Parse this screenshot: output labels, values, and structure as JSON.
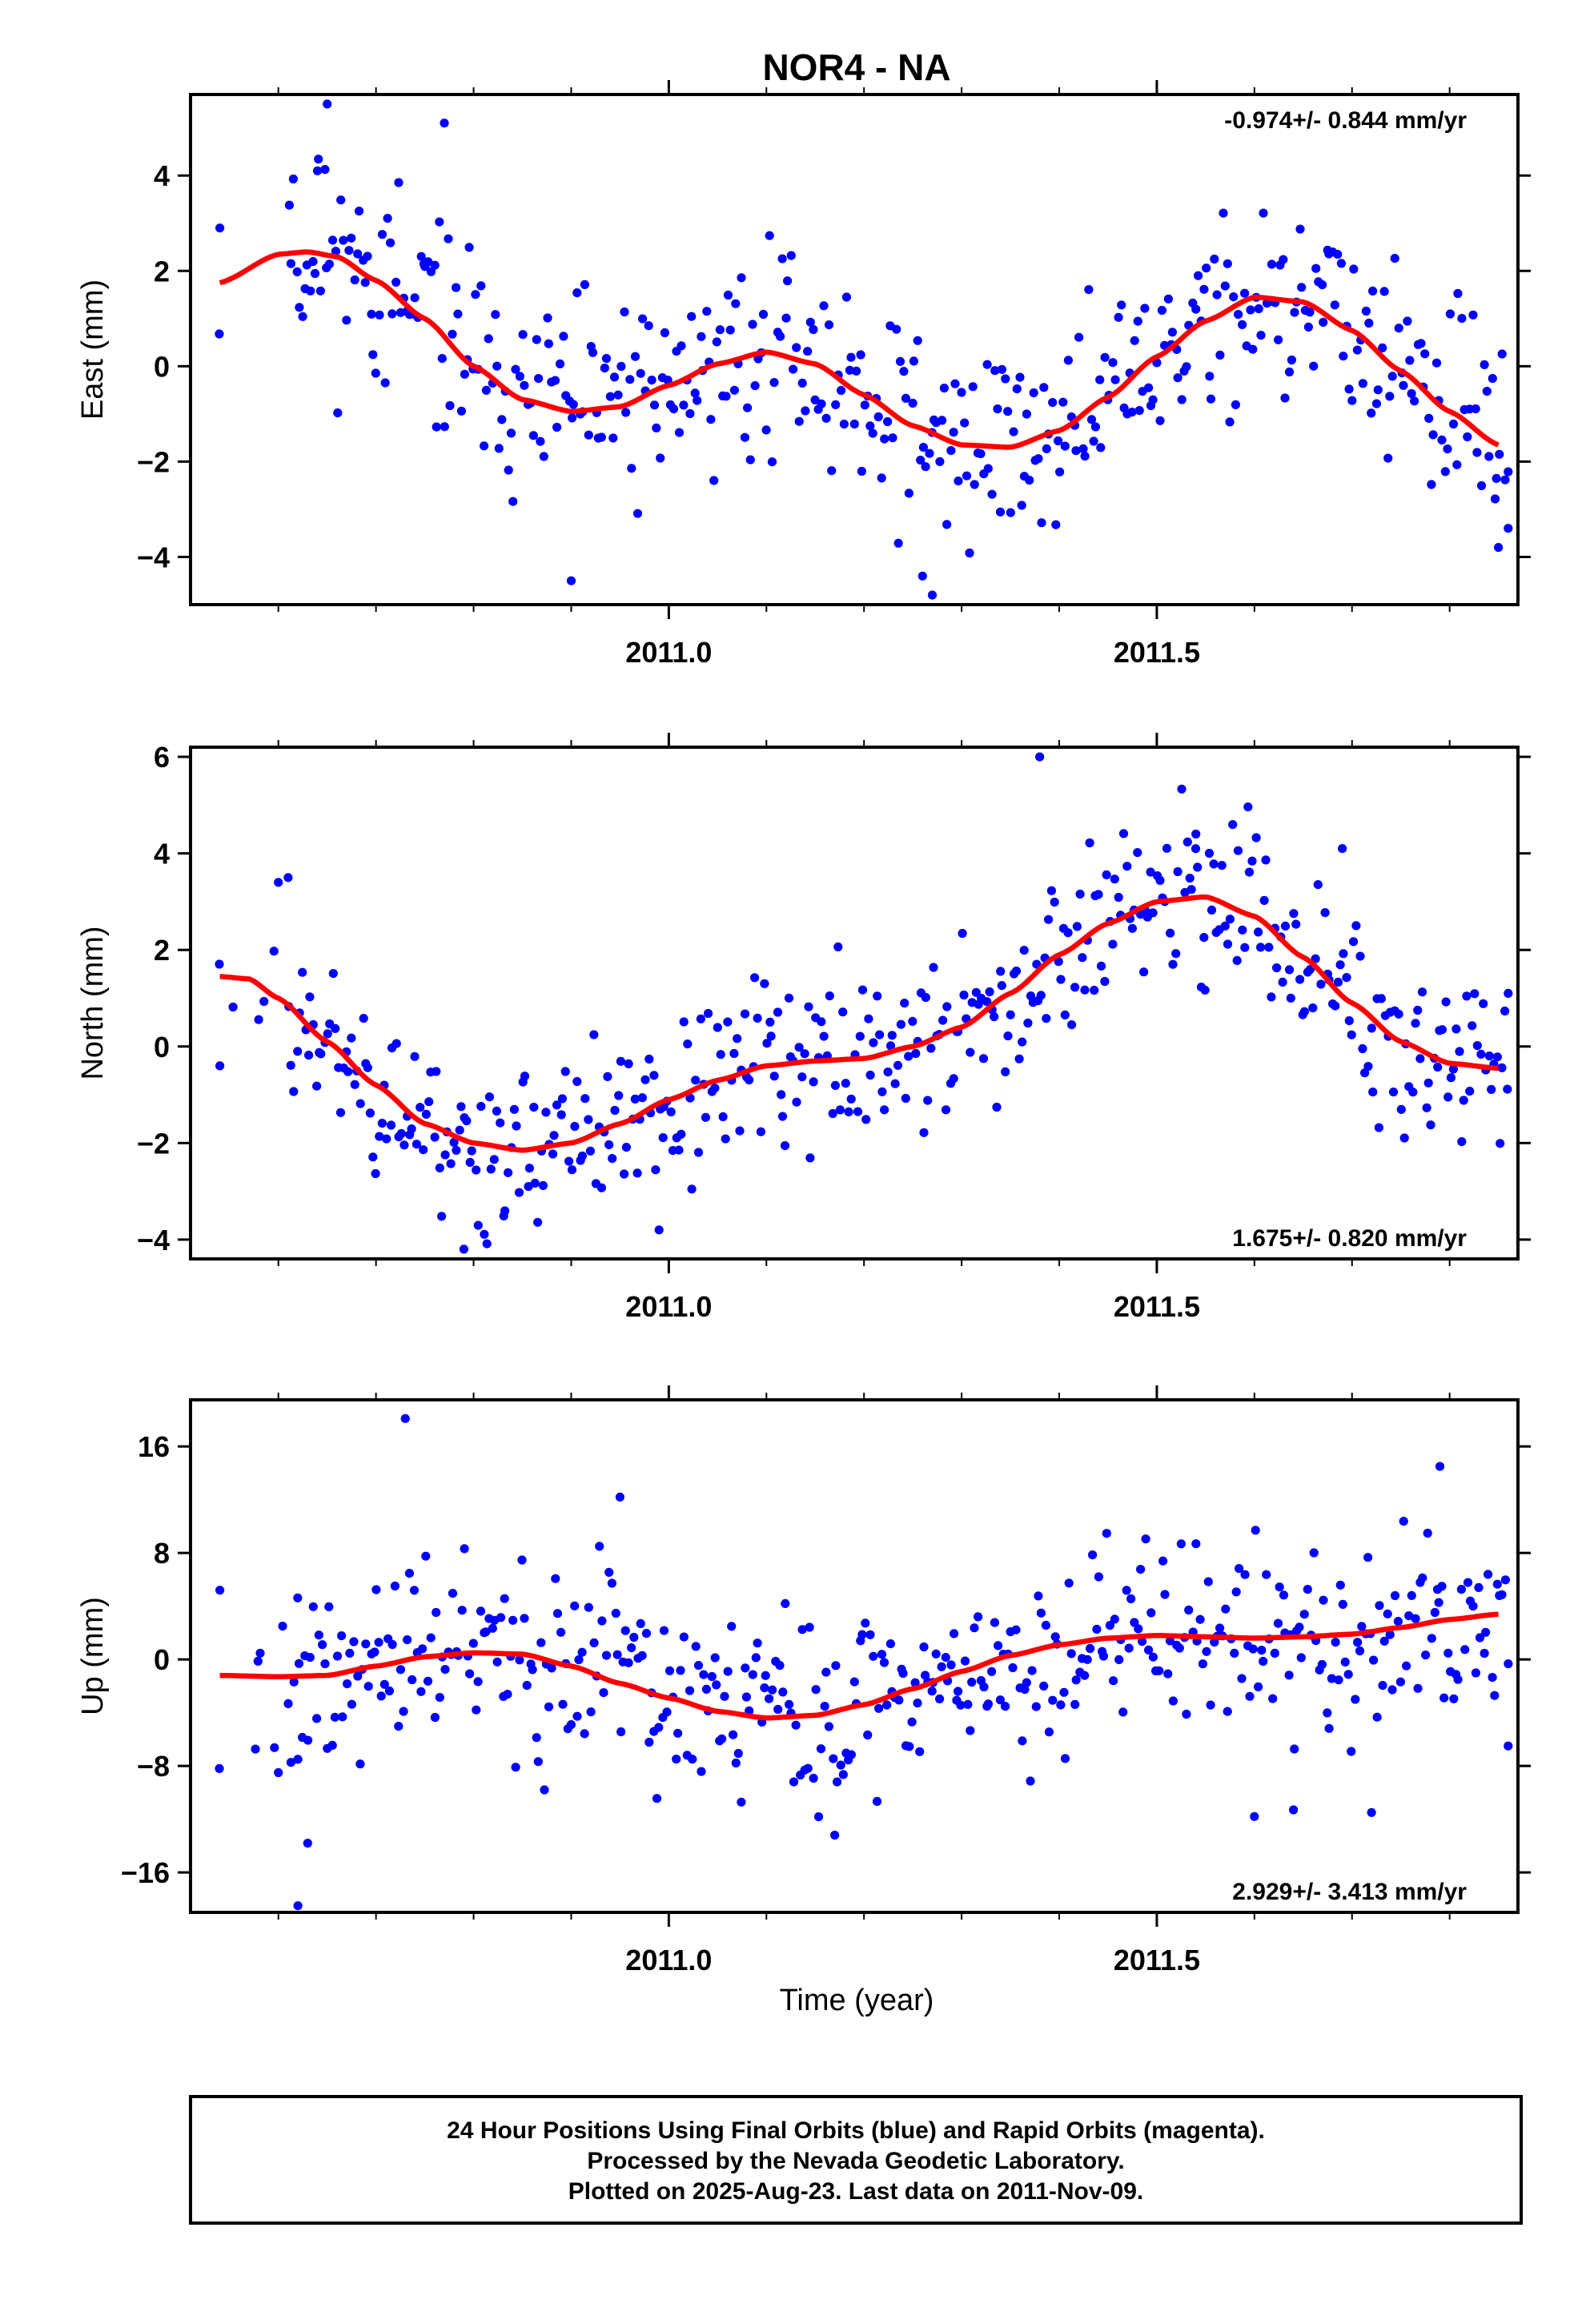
{
  "title": "NOR4 - NA",
  "xlabel": "Time (year)",
  "footer": [
    "24 Hour Positions Using Final Orbits (blue) and Rapid Orbits (magenta).",
    "Processed by the Nevada Geodetic Laboratory.",
    "Plotted on 2025-Aug-23. Last data on 2011-Nov-09."
  ],
  "colors": {
    "points": "#0000ff",
    "model": "#ff0000",
    "frame": "#000000"
  },
  "chart_data": [
    {
      "type": "scatter",
      "ylabel": "East (mm)",
      "rate_text": "-0.974+/- 0.844 mm/yr",
      "rate_position": "top-right",
      "xlim": [
        2010.51,
        2011.87
      ],
      "ylim": [
        -5.0,
        5.7
      ],
      "xticks": [
        2011.0,
        2011.5
      ],
      "xtick_labels": [
        "2011.0",
        "2011.5"
      ],
      "yticks": [
        4,
        2,
        0,
        -2,
        -4
      ],
      "ytick_labels": [
        "4",
        "2",
        "0",
        "−2",
        "−4"
      ],
      "grid": false,
      "model_x": [
        2010.54,
        2010.6,
        2010.63,
        2010.66,
        2010.7,
        2010.75,
        2010.8,
        2010.85,
        2010.9,
        2010.95,
        2011.0,
        2011.05,
        2011.1,
        2011.15,
        2011.2,
        2011.25,
        2011.3,
        2011.35,
        2011.4,
        2011.45,
        2011.5,
        2011.55,
        2011.6,
        2011.65,
        2011.7,
        2011.75,
        2011.8,
        2011.85
      ],
      "model_y": [
        1.75,
        2.35,
        2.4,
        2.3,
        1.8,
        1.0,
        0.0,
        -0.7,
        -0.95,
        -0.85,
        -0.4,
        0.05,
        0.3,
        0.05,
        -0.6,
        -1.25,
        -1.65,
        -1.7,
        -1.35,
        -0.65,
        0.2,
        0.95,
        1.45,
        1.35,
        0.75,
        -0.1,
        -0.95,
        -1.65
      ],
      "scatter_seed": 11,
      "scatter_spread": 1.25,
      "outliers": [
        [
          2010.54,
          2.9
        ],
        [
          2010.65,
          5.5
        ],
        [
          2010.64,
          4.1
        ],
        [
          2010.77,
          5.1
        ],
        [
          2010.9,
          -4.5
        ],
        [
          2011.27,
          -4.8
        ],
        [
          2011.26,
          -4.4
        ],
        [
          2011.86,
          -3.4
        ],
        [
          2011.85,
          -3.8
        ]
      ]
    },
    {
      "type": "scatter",
      "ylabel": "North (mm)",
      "rate_text": "1.675+/- 0.820 mm/yr",
      "rate_position": "bottom-right",
      "xlim": [
        2010.51,
        2011.87
      ],
      "ylim": [
        -4.4,
        6.2
      ],
      "xticks": [
        2011.0,
        2011.5
      ],
      "xtick_labels": [
        "2011.0",
        "2011.5"
      ],
      "yticks": [
        6,
        4,
        2,
        0,
        -2,
        -4
      ],
      "ytick_labels": [
        "6",
        "4",
        "2",
        "0",
        "−2",
        "−4"
      ],
      "grid": false,
      "model_x": [
        2010.54,
        2010.57,
        2010.6,
        2010.65,
        2010.7,
        2010.75,
        2010.8,
        2010.85,
        2010.9,
        2010.95,
        2011.0,
        2011.05,
        2011.1,
        2011.15,
        2011.2,
        2011.25,
        2011.3,
        2011.35,
        2011.4,
        2011.45,
        2011.5,
        2011.55,
        2011.6,
        2011.65,
        2011.7,
        2011.75,
        2011.8,
        2011.85
      ],
      "model_y": [
        1.45,
        1.4,
        1.0,
        0.1,
        -0.8,
        -1.6,
        -2.0,
        -2.15,
        -2.0,
        -1.6,
        -1.1,
        -0.7,
        -0.4,
        -0.3,
        -0.25,
        0.0,
        0.4,
        1.1,
        1.9,
        2.55,
        3.0,
        3.1,
        2.7,
        1.85,
        0.9,
        0.1,
        -0.35,
        -0.45
      ],
      "scatter_seed": 23,
      "scatter_spread": 1.05,
      "outliers": [
        [
          2010.54,
          -0.4
        ],
        [
          2010.6,
          3.4
        ],
        [
          2010.61,
          3.5
        ],
        [
          2011.38,
          6.0
        ],
        [
          2011.54,
          4.4
        ],
        [
          2011.69,
          4.1
        ],
        [
          2010.79,
          -4.2
        ],
        [
          2010.99,
          -3.8
        ],
        [
          2011.86,
          1.1
        ]
      ]
    },
    {
      "type": "scatter",
      "ylabel": "Up (mm)",
      "rate_text": "2.929+/- 3.413 mm/yr",
      "rate_position": "bottom-right",
      "xlim": [
        2010.51,
        2011.87
      ],
      "ylim": [
        -19,
        19.5
      ],
      "xticks": [
        2011.0,
        2011.5
      ],
      "xtick_labels": [
        "2011.0",
        "2011.5"
      ],
      "yticks": [
        16,
        8,
        0,
        -8,
        -16
      ],
      "ytick_labels": [
        "16",
        "8",
        "0",
        "−8",
        "−16"
      ],
      "grid": false,
      "model_x": [
        2010.54,
        2010.6,
        2010.65,
        2010.7,
        2010.75,
        2010.8,
        2010.85,
        2010.9,
        2010.95,
        2011.0,
        2011.05,
        2011.1,
        2011.15,
        2011.2,
        2011.25,
        2011.3,
        2011.35,
        2011.4,
        2011.45,
        2011.5,
        2011.55,
        2011.6,
        2011.65,
        2011.7,
        2011.75,
        2011.8,
        2011.85
      ],
      "model_y": [
        -1.2,
        -1.3,
        -1.2,
        -0.5,
        0.2,
        0.5,
        0.4,
        -0.5,
        -1.8,
        -2.9,
        -3.9,
        -4.4,
        -4.2,
        -3.4,
        -2.2,
        -0.9,
        0.3,
        1.1,
        1.6,
        1.8,
        1.7,
        1.6,
        1.7,
        1.9,
        2.4,
        3.0,
        3.4
      ],
      "scatter_seed": 37,
      "scatter_spread": 4.2,
      "outliers": [
        [
          2010.54,
          5.2
        ],
        [
          2010.6,
          -8.5
        ],
        [
          2010.62,
          -7.5
        ],
        [
          2010.63,
          -13.8
        ],
        [
          2010.62,
          -18.5
        ],
        [
          2010.73,
          18.1
        ],
        [
          2010.95,
          12.2
        ],
        [
          2011.17,
          -13.2
        ],
        [
          2011.6,
          -11.8
        ],
        [
          2011.64,
          -11.3
        ],
        [
          2011.72,
          -11.5
        ],
        [
          2011.79,
          14.5
        ],
        [
          2011.86,
          -6.5
        ]
      ]
    }
  ]
}
